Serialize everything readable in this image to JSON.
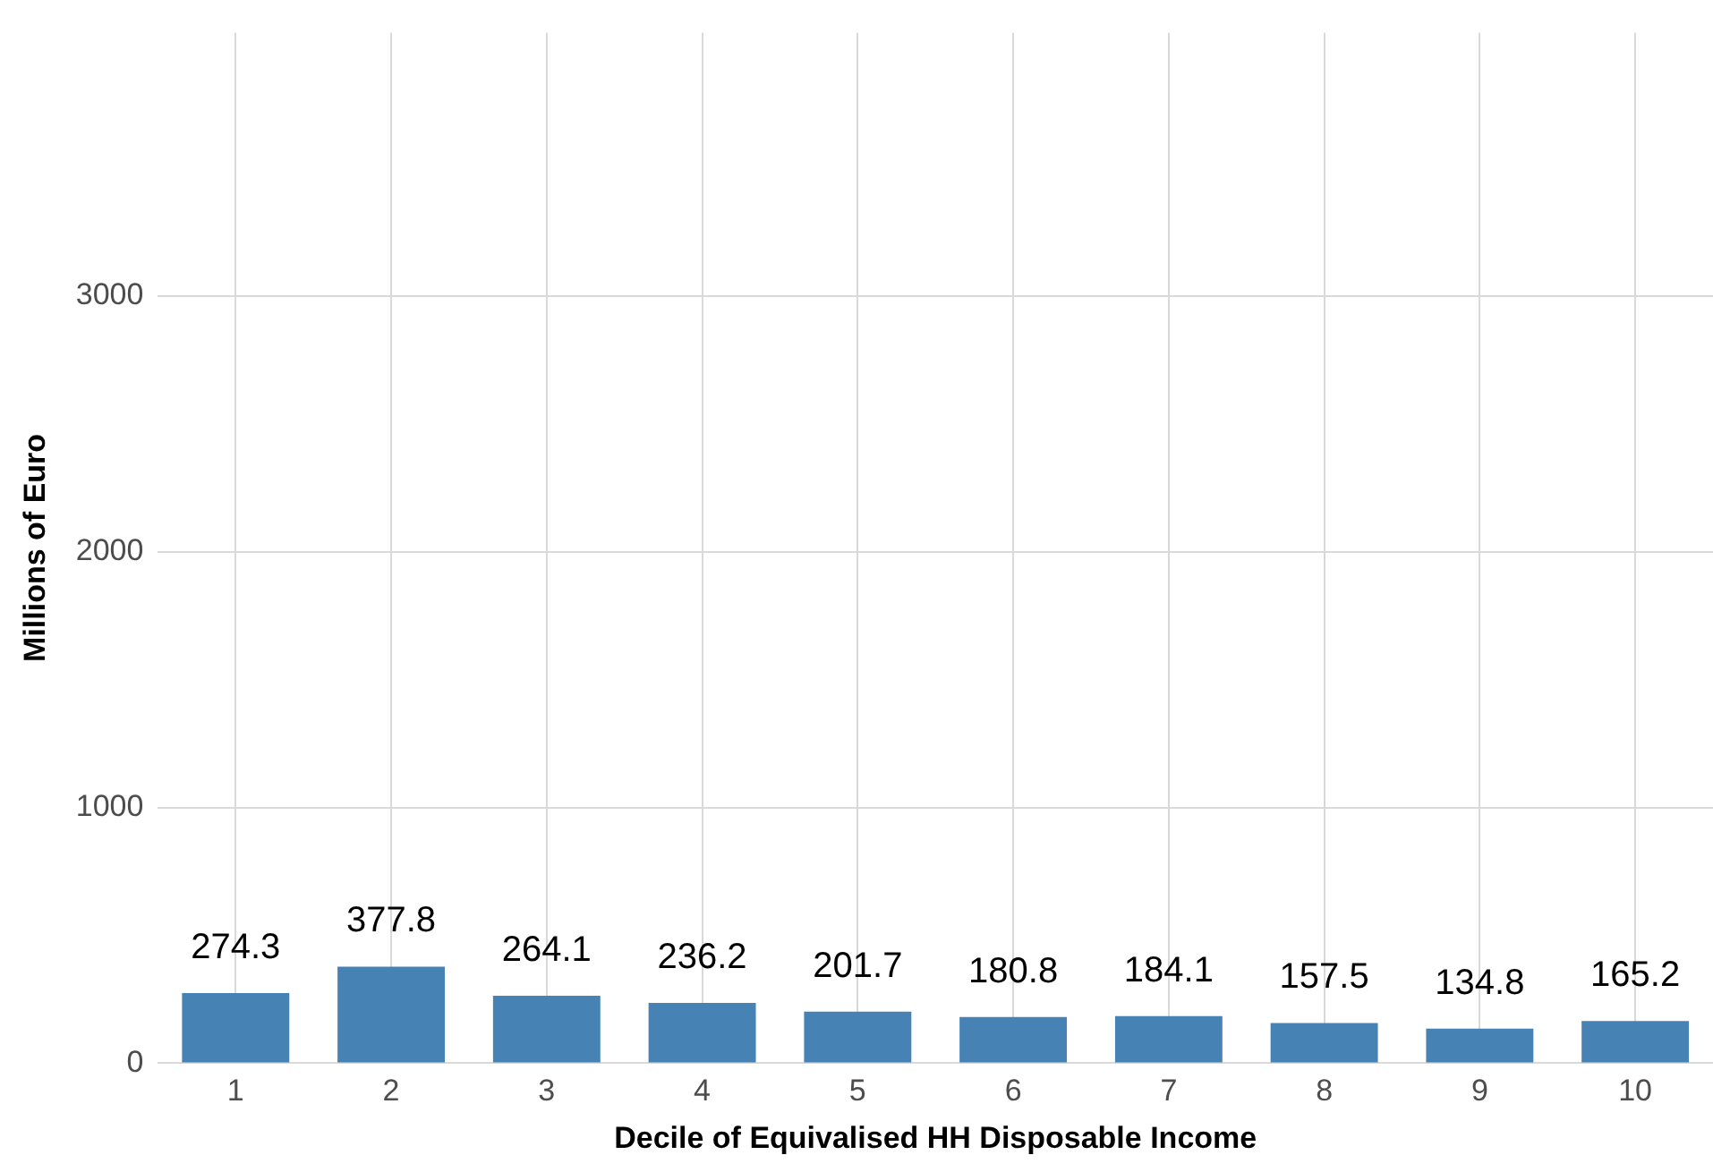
{
  "chart_data": {
    "type": "bar",
    "xlabel": "Decile of Equivalised HH Disposable Income",
    "ylabel": "Millions of Euro",
    "categories": [
      "1",
      "2",
      "3",
      "4",
      "5",
      "6",
      "7",
      "8",
      "9",
      "10"
    ],
    "values": [
      274.3,
      377.8,
      264.1,
      236.2,
      201.7,
      180.8,
      184.1,
      157.5,
      134.8,
      165.2
    ],
    "color": "#4682b4",
    "ylim": [
      0,
      4030
    ],
    "yticks": [
      0,
      1000,
      2000,
      3000
    ],
    "grid": true,
    "data_labels": true
  }
}
